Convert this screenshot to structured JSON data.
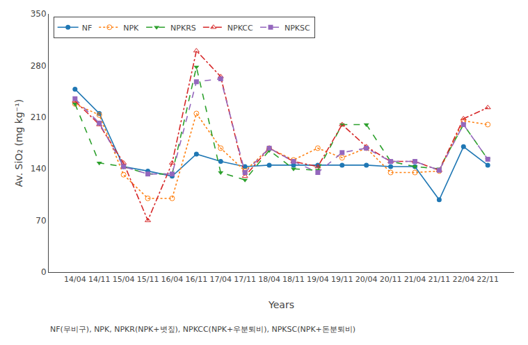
{
  "chart_data": {
    "type": "line",
    "xlabel": "Years",
    "ylabel": "Av. SiO₂ (mg kg⁻¹)",
    "caption": "NF(무비구), NPK, NPKR(NPK+볏짚), NPKCC(NPK+우분퇴비), NPKSC(NPK+돈분퇴비)",
    "categories": [
      "14/04",
      "14/11",
      "15/04",
      "15/11",
      "16/04",
      "16/11",
      "17/04",
      "17/11",
      "18/04",
      "18/11",
      "19/04",
      "19/11",
      "20/04",
      "20/11",
      "21/04",
      "21/11",
      "22/04",
      "22/11"
    ],
    "series": [
      {
        "name": "NF",
        "line_style": "solid",
        "marker": "circle",
        "values": [
          248,
          215,
          143,
          137,
          130,
          160,
          150,
          143,
          145,
          145,
          145,
          145,
          145,
          143,
          143,
          98,
          170,
          145
        ]
      },
      {
        "name": "NPK",
        "line_style": "dot",
        "marker": "circle-open",
        "values": [
          228,
          213,
          132,
          100,
          100,
          215,
          168,
          137,
          168,
          152,
          168,
          155,
          168,
          135,
          135,
          137,
          205,
          200
        ]
      },
      {
        "name": "NPKRS",
        "line_style": "dash",
        "marker": "triangle-down",
        "values": [
          228,
          148,
          143,
          133,
          133,
          278,
          135,
          125,
          165,
          140,
          138,
          200,
          200,
          150,
          143,
          140,
          200,
          153
        ]
      },
      {
        "name": "NPKCC",
        "line_style": "dashdot",
        "marker": "triangle-up-open",
        "values": [
          232,
          200,
          148,
          70,
          148,
          300,
          265,
          130,
          168,
          150,
          143,
          200,
          170,
          150,
          150,
          138,
          208,
          223
        ]
      },
      {
        "name": "NPKSC",
        "line_style": "dash",
        "marker": "square",
        "values": [
          235,
          202,
          143,
          133,
          133,
          258,
          262,
          135,
          168,
          150,
          135,
          162,
          168,
          150,
          150,
          138,
          200,
          153
        ]
      }
    ],
    "ylim": [
      0,
      350
    ],
    "yticks": [
      0,
      70,
      140,
      210,
      280,
      350
    ],
    "grid": false,
    "legend": "upper left"
  }
}
